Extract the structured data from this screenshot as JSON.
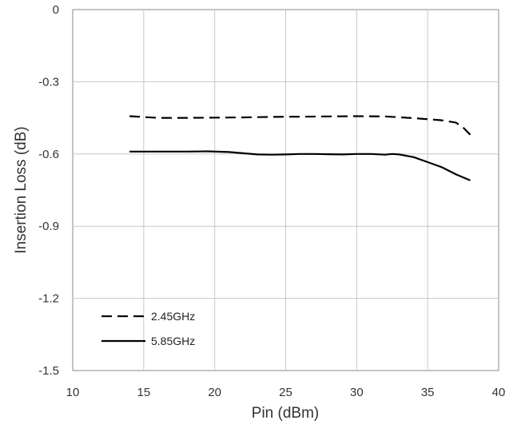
{
  "chart_data": {
    "type": "line",
    "xlabel": "Pin (dBm)",
    "ylabel": "Insertion Loss (dB)",
    "xlim": [
      10,
      40
    ],
    "ylim": [
      -1.5,
      0
    ],
    "xticks": [
      "10",
      "15",
      "20",
      "25",
      "30",
      "35",
      "40"
    ],
    "yticks": [
      "0",
      "-0.3",
      "-0.6",
      "-0.9",
      "-1.2",
      "-1.5"
    ],
    "grid": true,
    "legend_position": "bottom-left",
    "series": [
      {
        "name": "2.45GHz",
        "style": "dashed",
        "color": "#000000",
        "x": [
          14,
          16,
          18,
          20,
          22,
          24,
          26,
          28,
          30,
          32,
          34,
          36,
          37,
          37.5,
          38
        ],
        "y": [
          -0.443,
          -0.45,
          -0.45,
          -0.449,
          -0.448,
          -0.446,
          -0.445,
          -0.444,
          -0.443,
          -0.444,
          -0.451,
          -0.46,
          -0.47,
          -0.49,
          -0.52
        ]
      },
      {
        "name": "5.85GHz",
        "style": "solid",
        "color": "#000000",
        "x": [
          14,
          16,
          18,
          19.5,
          21,
          22,
          23,
          24,
          25,
          26,
          27,
          28,
          29,
          30,
          31,
          32,
          32.5,
          33,
          34,
          35,
          36,
          37,
          38
        ],
        "y": [
          -0.59,
          -0.59,
          -0.59,
          -0.589,
          -0.592,
          -0.597,
          -0.602,
          -0.603,
          -0.602,
          -0.6,
          -0.6,
          -0.601,
          -0.602,
          -0.6,
          -0.6,
          -0.603,
          -0.6,
          -0.602,
          -0.613,
          -0.634,
          -0.655,
          -0.685,
          -0.71
        ]
      }
    ]
  }
}
